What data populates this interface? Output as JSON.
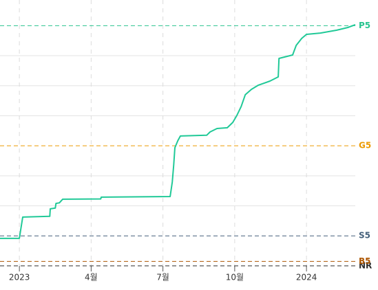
{
  "chart_data": {
    "type": "line",
    "xlim": [
      -0.81,
      14.04
    ],
    "ylim": [
      -37,
      1771
    ],
    "xticks": [
      {
        "value": 0,
        "label": "2023"
      },
      {
        "value": 3,
        "label": "4월"
      },
      {
        "value": 6,
        "label": "7월"
      },
      {
        "value": 9,
        "label": "10월"
      },
      {
        "value": 12,
        "label": "2024"
      }
    ],
    "yticks": [
      {
        "value": 0,
        "label": "NR"
      },
      {
        "value": 30,
        "label": "B5"
      },
      {
        "value": 200,
        "label": "S5"
      },
      {
        "value": 800,
        "label": "G5"
      },
      {
        "value": 1600,
        "label": "P5"
      }
    ],
    "ytick_colors": [
      "#2d2d2d",
      "#ad5600",
      "#435f7a",
      "#ec9a00",
      "#27c48f"
    ],
    "ygrid": [
      400,
      600,
      1000,
      1200,
      1400
    ],
    "grid": true,
    "series": [
      {
        "color": "#20c997",
        "x": [
          -0.81,
          0,
          0.14,
          1.27,
          1.29,
          1.5,
          1.53,
          1.67,
          1.81,
          3.4,
          3.42,
          6.3,
          6.39,
          6.45,
          6.5,
          6.62,
          6.73,
          7.83,
          7.97,
          8.26,
          8.69,
          8.92,
          9.09,
          9.27,
          9.44,
          9.7,
          9.99,
          10.47,
          10.82,
          10.85,
          11.42,
          11.57,
          11.8,
          12,
          12.58,
          13.27,
          13.73,
          14.04
        ],
        "values": [
          183,
          183,
          325,
          330,
          380,
          385,
          416,
          420,
          444,
          446,
          458,
          462,
          558,
          673,
          787,
          833,
          865,
          870,
          892,
          915,
          920,
          956,
          1002,
          1062,
          1140,
          1176,
          1204,
          1231,
          1259,
          1382,
          1405,
          1469,
          1515,
          1542,
          1551,
          1570,
          1588,
          1606
        ]
      }
    ]
  }
}
